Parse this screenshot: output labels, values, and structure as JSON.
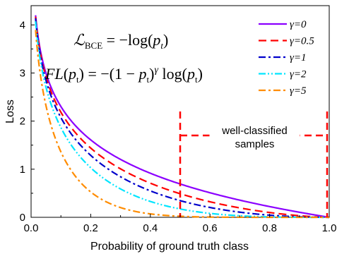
{
  "chart_data": {
    "type": "line",
    "xlabel": "Probability of ground truth class",
    "ylabel": "Loss",
    "xlim": [
      0,
      1
    ],
    "ylim": [
      0,
      4.4
    ],
    "x_ticks": [
      0.0,
      0.2,
      0.4,
      0.6,
      0.8,
      1.0
    ],
    "y_ticks": [
      0,
      1,
      2,
      3,
      4
    ],
    "x_tick_labels": [
      "0.0",
      "0.2",
      "0.4",
      "0.6",
      "0.8",
      "1.0"
    ],
    "y_tick_labels": [
      "0",
      "1",
      "2",
      "3",
      "4"
    ],
    "grid": false,
    "legend_position": "top-right",
    "series": [
      {
        "name": "γ=0",
        "gamma": 0,
        "color": "#8B00FF",
        "dash": "solid"
      },
      {
        "name": "γ=0.5",
        "gamma": 0.5,
        "color": "#FF0000",
        "dash": "dashed"
      },
      {
        "name": "γ=1",
        "gamma": 1,
        "color": "#0000CC",
        "dash": "dash-dot"
      },
      {
        "name": "γ=2",
        "gamma": 2,
        "color": "#00E5FF",
        "dash": "dash-dot-dot"
      },
      {
        "name": "γ=5",
        "gamma": 5,
        "color": "#FF8C00",
        "dash": "dash-dot"
      }
    ],
    "formula_bce": {
      "lhs": "ℒ",
      "sub": "BCE",
      "rhs_pre": " = −log(",
      "p": "p",
      "p_sub": "t",
      "rhs_post": ")"
    },
    "formula_fl": {
      "lhs": "FL",
      "p": "p",
      "p_sub": "t",
      "mid": " = −(1 − ",
      "gamma": "γ",
      "log": " log"
    },
    "annotation": {
      "line1": "well-classified",
      "line2": "samples",
      "x_start": 0.5,
      "x_end": 1.0,
      "color": "#FF0000"
    }
  }
}
